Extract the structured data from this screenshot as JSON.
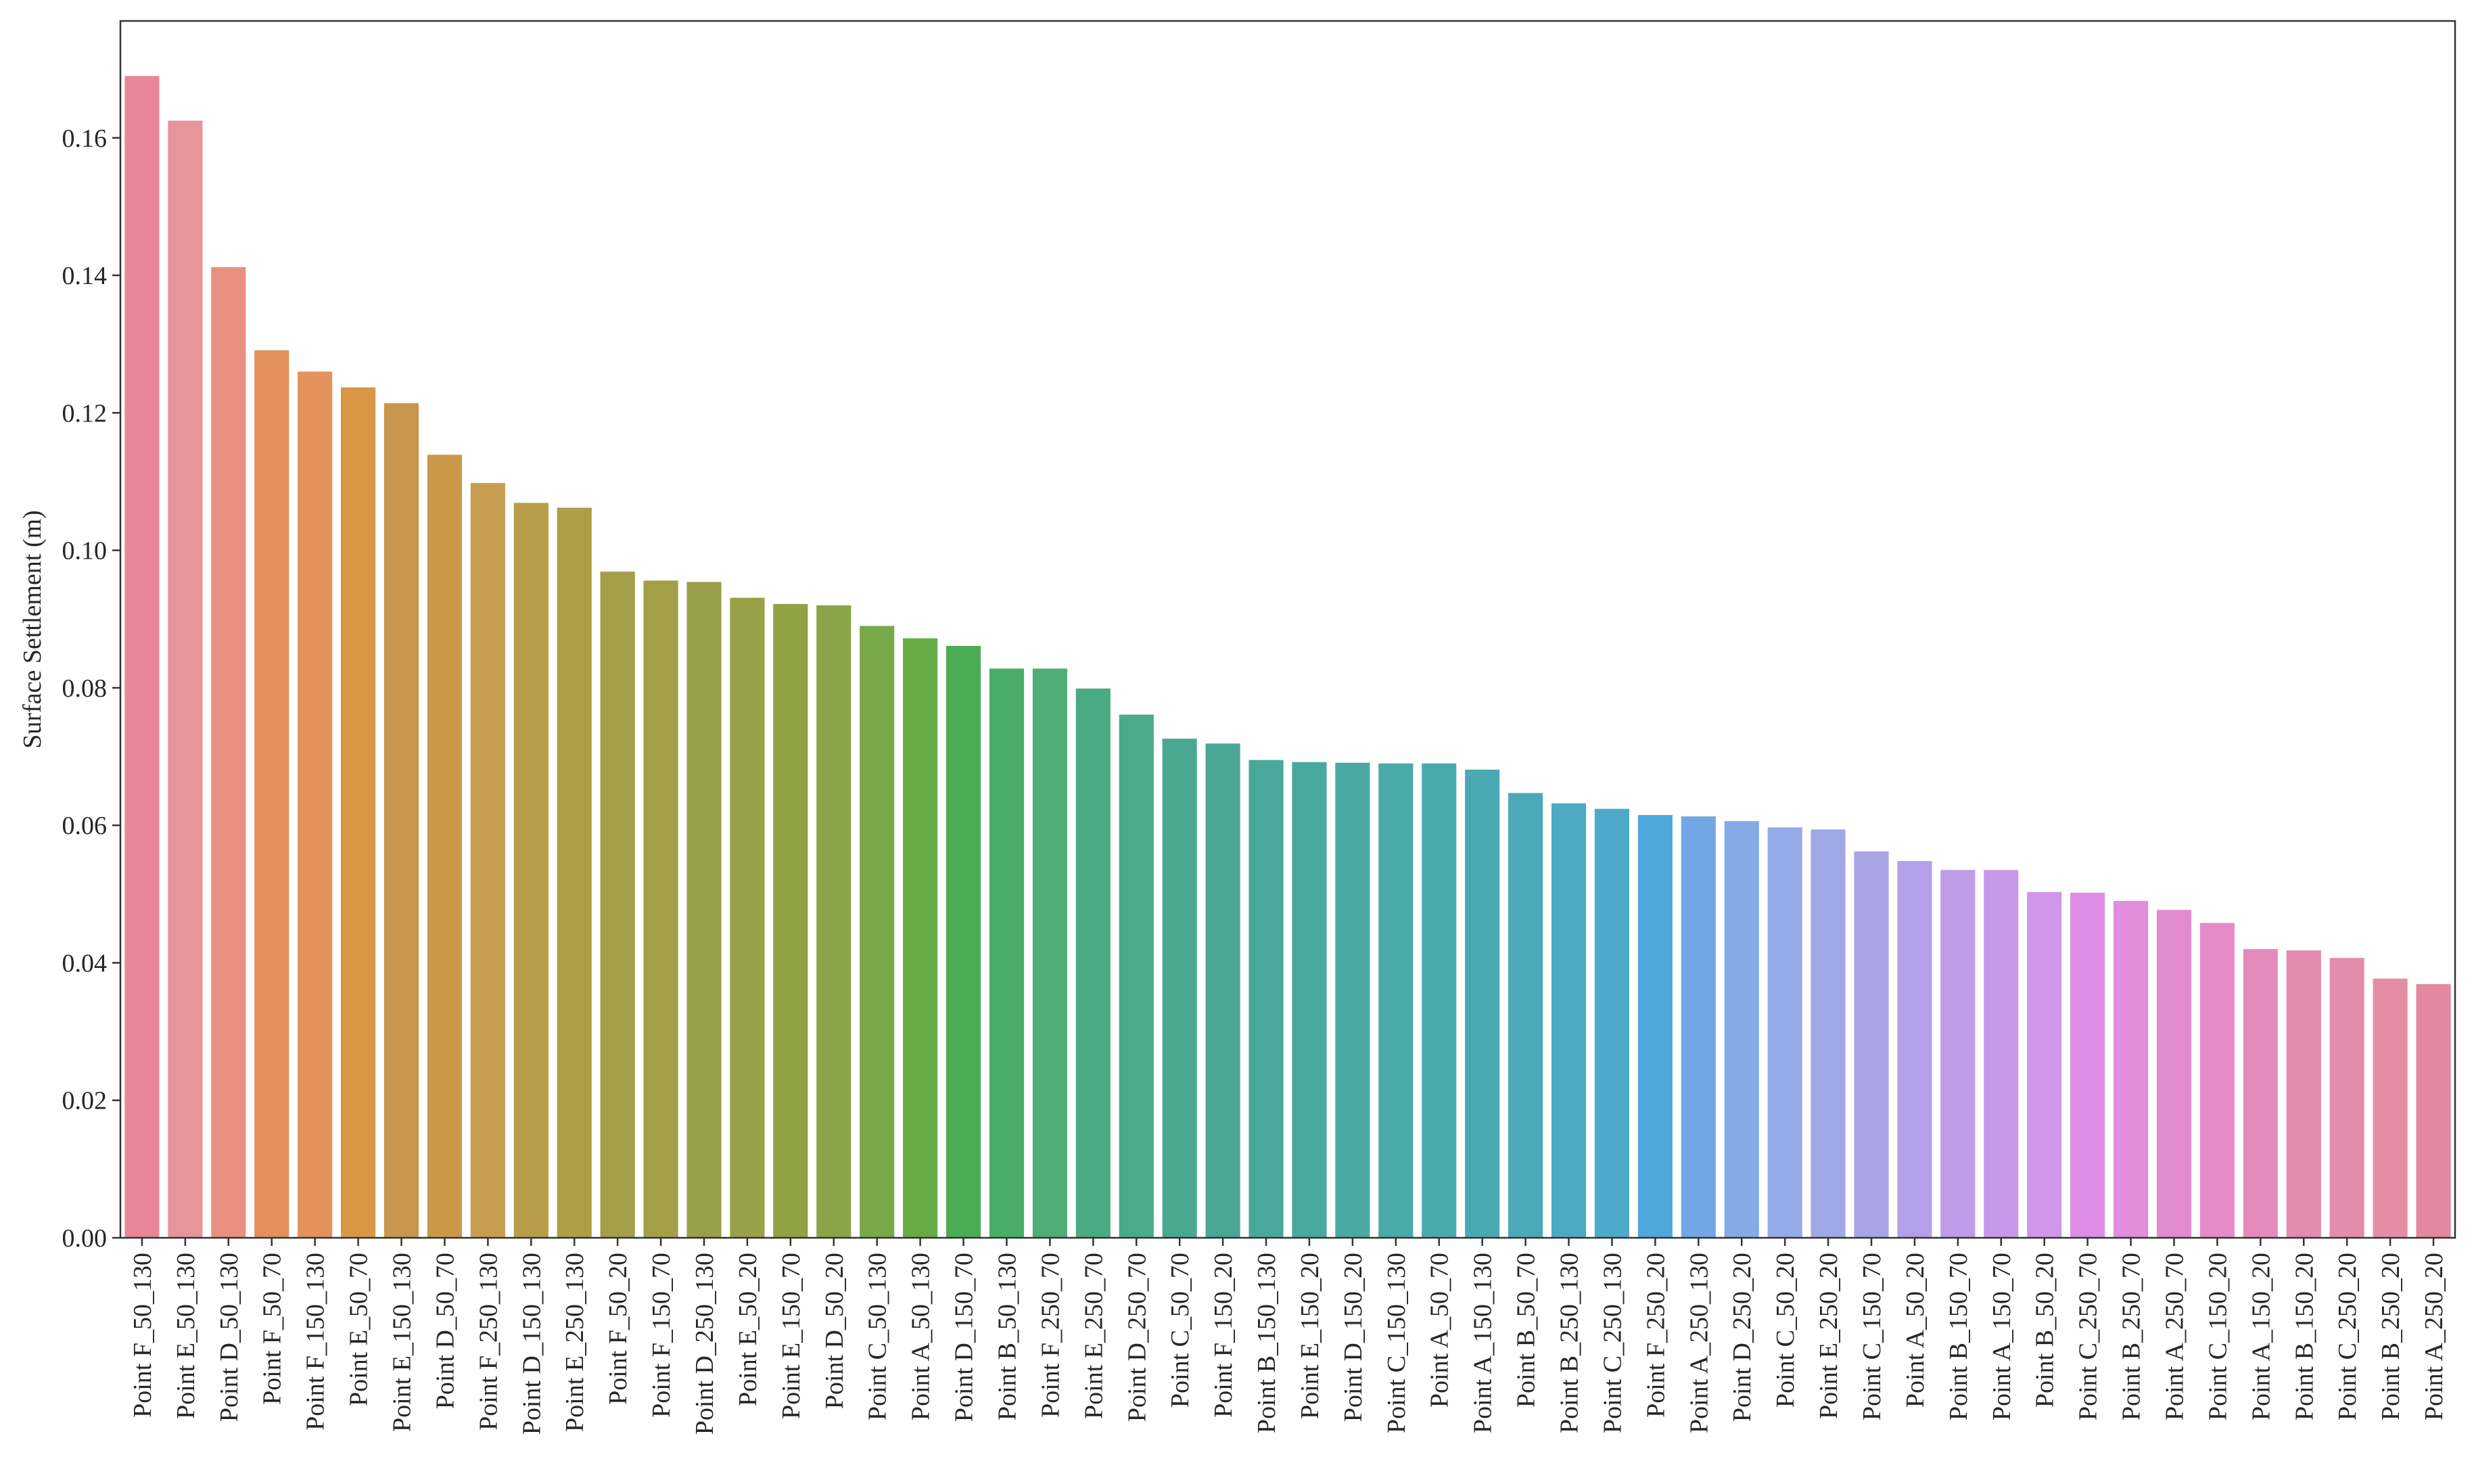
{
  "chart_data": {
    "type": "bar",
    "title": "",
    "xlabel": "",
    "ylabel": "Surface Settlement (m)",
    "ylim": [
      0,
      0.177
    ],
    "yticks": [
      0.0,
      0.02,
      0.04,
      0.06,
      0.08,
      0.1,
      0.12,
      0.14,
      0.16
    ],
    "ytick_labels": [
      "0.00",
      "0.02",
      "0.04",
      "0.06",
      "0.08",
      "0.10",
      "0.12",
      "0.14",
      "0.16"
    ],
    "grid": false,
    "categories": [
      "Point F_50_130",
      "Point E_50_130",
      "Point D_50_130",
      "Point F_50_70",
      "Point F_150_130",
      "Point E_50_70",
      "Point E_150_130",
      "Point D_50_70",
      "Point F_250_130",
      "Point D_150_130",
      "Point E_250_130",
      "Point F_50_20",
      "Point F_150_70",
      "Point D_250_130",
      "Point E_50_20",
      "Point E_150_70",
      "Point D_50_20",
      "Point C_50_130",
      "Point A_50_130",
      "Point D_150_70",
      "Point B_50_130",
      "Point F_250_70",
      "Point E_250_70",
      "Point D_250_70",
      "Point C_50_70",
      "Point F_150_20",
      "Point B_150_130",
      "Point E_150_20",
      "Point D_150_20",
      "Point C_150_130",
      "Point A_50_70",
      "Point A_150_130",
      "Point B_50_70",
      "Point B_250_130",
      "Point C_250_130",
      "Point F_250_20",
      "Point A_250_130",
      "Point D_250_20",
      "Point C_50_20",
      "Point E_250_20",
      "Point C_150_70",
      "Point A_50_20",
      "Point B_150_70",
      "Point A_150_70",
      "Point B_50_20",
      "Point C_250_70",
      "Point B_250_70",
      "Point A_250_70",
      "Point C_150_20",
      "Point A_150_20",
      "Point B_150_20",
      "Point C_250_20",
      "Point B_250_20",
      "Point A_250_20"
    ],
    "values": [
      0.169,
      0.1625,
      0.1412,
      0.1291,
      0.126,
      0.1237,
      0.1214,
      0.1139,
      0.1098,
      0.1069,
      0.1062,
      0.0969,
      0.0956,
      0.0954,
      0.0931,
      0.0922,
      0.092,
      0.089,
      0.0872,
      0.0861,
      0.0828,
      0.0828,
      0.0799,
      0.0761,
      0.0726,
      0.0719,
      0.0695,
      0.0692,
      0.0691,
      0.069,
      0.069,
      0.0681,
      0.0647,
      0.0632,
      0.0624,
      0.0615,
      0.0613,
      0.0606,
      0.0597,
      0.0594,
      0.0562,
      0.0548,
      0.0535,
      0.0535,
      0.0503,
      0.0502,
      0.049,
      0.0477,
      0.0458,
      0.042,
      0.0418,
      0.0407,
      0.0377,
      0.0369
    ],
    "colors": [
      "#e8879a",
      "#e7949a",
      "#e8907f",
      "#e2915c",
      "#e39359",
      "#d99746",
      "#c8974d",
      "#c99949",
      "#c79e50",
      "#b59d4a",
      "#ae9e46",
      "#a39e48",
      "#a29f46",
      "#9aa048",
      "#98a148",
      "#91a244",
      "#8aa548",
      "#78a848",
      "#67ab45",
      "#4aac52",
      "#4aad67",
      "#4dad74",
      "#4aab82",
      "#4aaa89",
      "#4ba890",
      "#4ba693",
      "#4aa89a",
      "#4aa99f",
      "#4aaaa3",
      "#4aaaa8",
      "#4baaad",
      "#4aa9b3",
      "#4ca9ba",
      "#4eaac2",
      "#4eaacb",
      "#4fa8dc",
      "#73a6e4",
      "#86aae8",
      "#95aae8",
      "#a1a8e8",
      "#a9a4e8",
      "#b4a0e8",
      "#be9ce8",
      "#c69ae8",
      "#d196e8",
      "#dd8de6",
      "#e08ddc",
      "#e38bd0",
      "#e68bc7",
      "#e58bbb",
      "#e48bb2",
      "#e48cab",
      "#e58da7",
      "#e288a0"
    ]
  }
}
